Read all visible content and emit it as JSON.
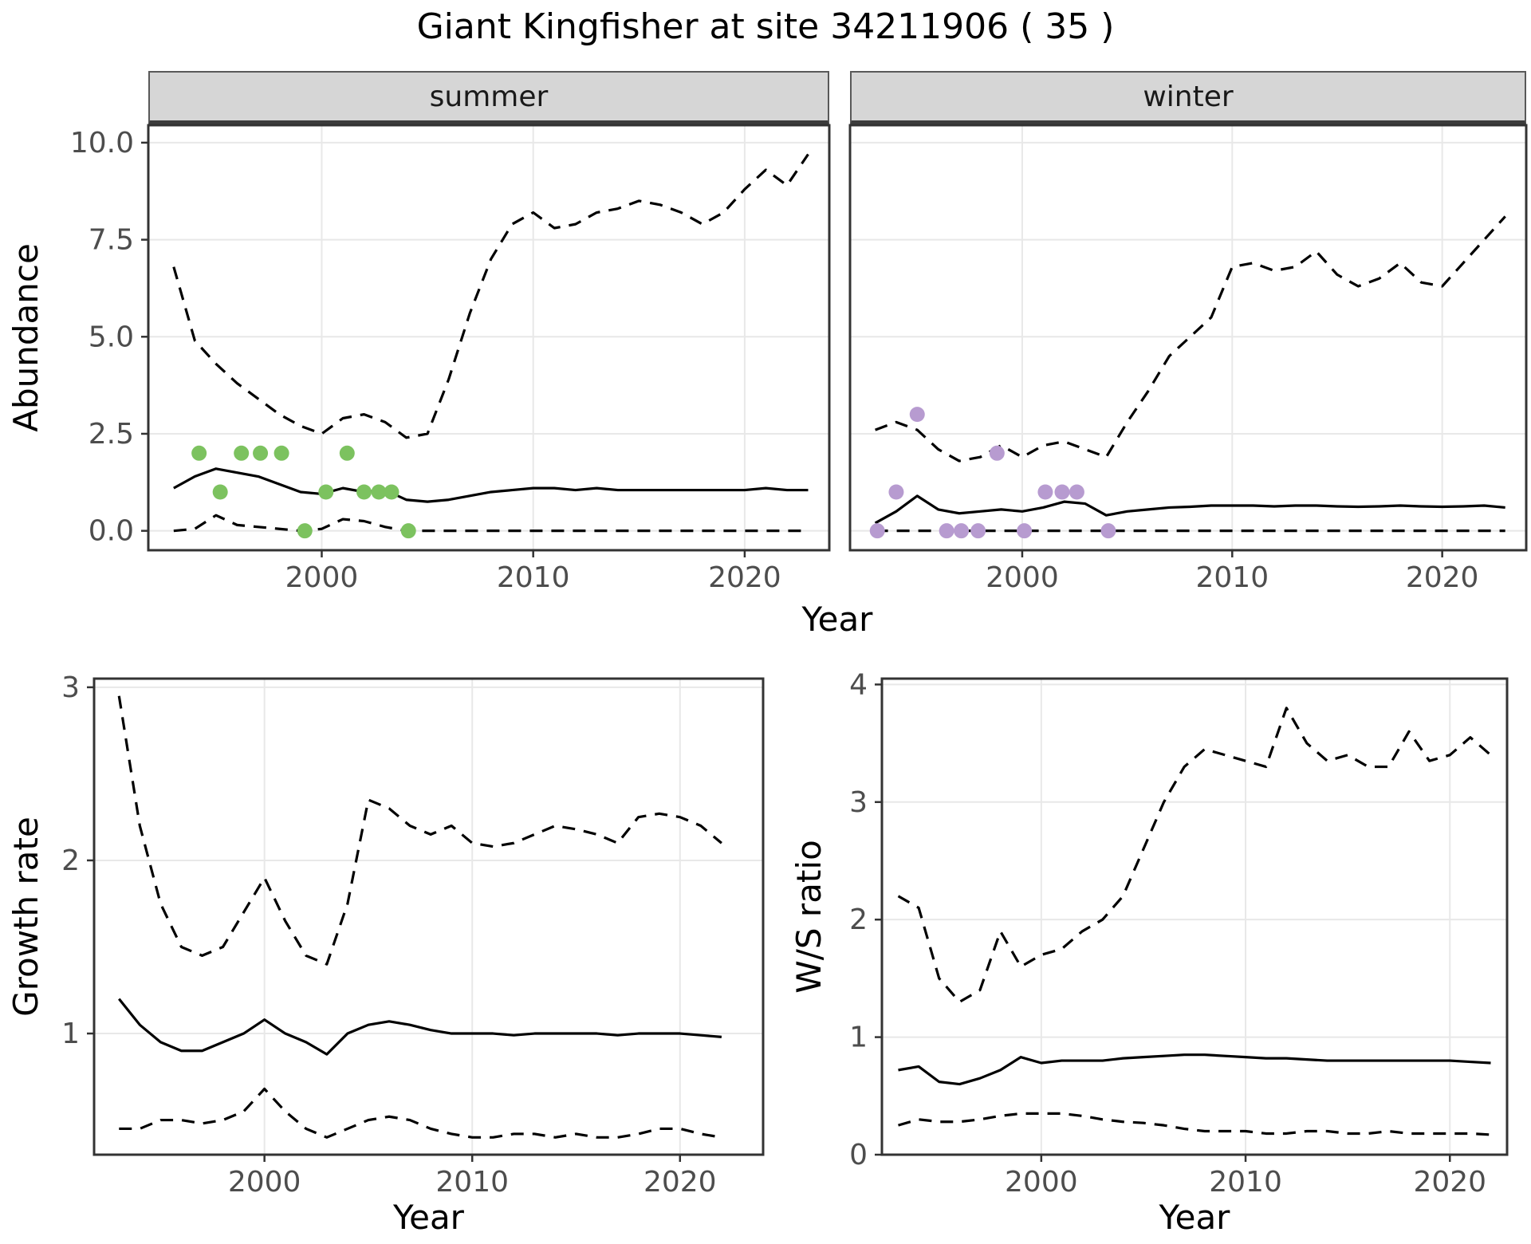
{
  "title": "Giant Kingfisher at site 34211906 ( 35 )",
  "axes": {
    "abundance_ylabel": "Abundance",
    "top_xlabel": "Year",
    "growth_ylabel": "Growth rate",
    "growth_xlabel": "Year",
    "ws_ylabel": "W/S ratio",
    "ws_xlabel": "Year"
  },
  "style": {
    "line_color": "#000000",
    "summer_point_color": "#7cc25f",
    "winter_point_color": "#b79bd0",
    "grid_color": "#e8e8e8",
    "panel_border_color": "#333333",
    "strip_bg": "#d6d6d6",
    "tick_label_color": "#4d4d4d"
  },
  "chart_data": [
    {
      "id": "abundance-summer",
      "type": "line",
      "facet": "summer",
      "show_y_labels": true,
      "xlim": [
        1991.8,
        2024
      ],
      "ylim": [
        -0.5,
        10.45
      ],
      "xticks": [
        2000,
        2010,
        2020
      ],
      "xtick_labels": [
        "2000",
        "2010",
        "2020"
      ],
      "yticks": [
        0,
        2.5,
        5,
        7.5,
        10
      ],
      "ytick_labels": [
        "0.0",
        "2.5",
        "5.0",
        "7.5",
        "10.0"
      ],
      "x": [
        1993,
        1994,
        1995,
        1996,
        1997,
        1998,
        1999,
        2000,
        2001,
        2002,
        2003,
        2004,
        2005,
        2006,
        2007,
        2008,
        2009,
        2010,
        2011,
        2012,
        2013,
        2014,
        2015,
        2016,
        2017,
        2018,
        2019,
        2020,
        2021,
        2022,
        2023
      ],
      "series": [
        {
          "name": "upper_ci",
          "style": "dashed",
          "values": [
            6.8,
            4.9,
            4.3,
            3.8,
            3.4,
            3.0,
            2.7,
            2.5,
            2.9,
            3.0,
            2.8,
            2.4,
            2.5,
            3.9,
            5.6,
            7.0,
            7.9,
            8.2,
            7.8,
            7.9,
            8.2,
            8.3,
            8.5,
            8.4,
            8.2,
            7.9,
            8.2,
            8.8,
            9.3,
            8.9,
            9.7
          ]
        },
        {
          "name": "median",
          "style": "solid",
          "values": [
            1.1,
            1.4,
            1.6,
            1.5,
            1.4,
            1.2,
            1.0,
            0.95,
            1.1,
            1.0,
            1.05,
            0.8,
            0.75,
            0.8,
            0.9,
            1.0,
            1.05,
            1.1,
            1.1,
            1.05,
            1.1,
            1.05,
            1.05,
            1.05,
            1.05,
            1.05,
            1.05,
            1.05,
            1.1,
            1.05,
            1.05
          ]
        },
        {
          "name": "lower_ci",
          "style": "dashed",
          "values": [
            0,
            0.05,
            0.4,
            0.15,
            0.1,
            0.05,
            0,
            0.05,
            0.3,
            0.25,
            0.1,
            0,
            0,
            0,
            0,
            0,
            0,
            0,
            0,
            0,
            0,
            0,
            0,
            0,
            0,
            0,
            0,
            0,
            0,
            0,
            0
          ]
        }
      ],
      "points": {
        "name": "observed-counts-summer",
        "color_key": "summer_point_color",
        "x": [
          1994.2,
          1995.2,
          1996.2,
          1997.1,
          1998.1,
          1999.2,
          2000.2,
          2001.2,
          2002.0,
          2002.7,
          2003.3,
          2004.1
        ],
        "y": [
          2,
          1,
          2,
          2,
          2,
          0,
          1,
          2,
          1,
          1,
          1,
          0
        ]
      }
    },
    {
      "id": "abundance-winter",
      "type": "line",
      "facet": "winter",
      "show_y_labels": false,
      "xlim": [
        1991.8,
        2024
      ],
      "ylim": [
        -0.5,
        10.45
      ],
      "xticks": [
        2000,
        2010,
        2020
      ],
      "xtick_labels": [
        "2000",
        "2010",
        "2020"
      ],
      "yticks": [
        0,
        2.5,
        5,
        7.5,
        10
      ],
      "ytick_labels": [
        "0.0",
        "2.5",
        "5.0",
        "7.5",
        "10.0"
      ],
      "x": [
        1993,
        1994,
        1995,
        1996,
        1997,
        1998,
        1999,
        2000,
        2001,
        2002,
        2003,
        2004,
        2005,
        2006,
        2007,
        2008,
        2009,
        2010,
        2011,
        2012,
        2013,
        2014,
        2015,
        2016,
        2017,
        2018,
        2019,
        2020,
        2021,
        2022,
        2023
      ],
      "series": [
        {
          "name": "upper_ci",
          "style": "dashed",
          "values": [
            2.6,
            2.8,
            2.6,
            2.1,
            1.8,
            1.9,
            2.2,
            1.9,
            2.2,
            2.3,
            2.1,
            1.9,
            2.8,
            3.6,
            4.5,
            5.0,
            5.5,
            6.8,
            6.9,
            6.7,
            6.8,
            7.2,
            6.6,
            6.3,
            6.5,
            6.9,
            6.4,
            6.3,
            6.9,
            7.5,
            8.1
          ]
        },
        {
          "name": "median",
          "style": "solid",
          "values": [
            0.2,
            0.5,
            0.9,
            0.55,
            0.45,
            0.5,
            0.55,
            0.5,
            0.6,
            0.75,
            0.7,
            0.4,
            0.5,
            0.55,
            0.6,
            0.62,
            0.65,
            0.65,
            0.65,
            0.63,
            0.65,
            0.65,
            0.63,
            0.62,
            0.63,
            0.65,
            0.63,
            0.62,
            0.63,
            0.65,
            0.6
          ]
        },
        {
          "name": "lower_ci",
          "style": "dashed",
          "values": [
            0,
            0,
            0,
            0,
            0,
            0,
            0,
            0,
            0,
            0,
            0,
            0,
            0,
            0,
            0,
            0,
            0,
            0,
            0,
            0,
            0,
            0,
            0,
            0,
            0,
            0,
            0,
            0,
            0,
            0,
            0
          ]
        }
      ],
      "points": {
        "name": "observed-counts-winter",
        "color_key": "winter_point_color",
        "x": [
          1993.1,
          1994.0,
          1995.0,
          1996.4,
          1997.1,
          1997.9,
          1998.8,
          2000.1,
          2001.1,
          2001.9,
          2002.6,
          2004.1
        ],
        "y": [
          0,
          1,
          3,
          0,
          0,
          0,
          2,
          0,
          1,
          1,
          1,
          0
        ]
      }
    },
    {
      "id": "growth-rate",
      "type": "line",
      "show_y_labels": true,
      "xlim": [
        1991.8,
        2024
      ],
      "ylim": [
        0.3,
        3.05
      ],
      "xticks": [
        2000,
        2010,
        2020
      ],
      "xtick_labels": [
        "2000",
        "2010",
        "2020"
      ],
      "yticks": [
        1,
        2,
        3
      ],
      "ytick_labels": [
        "1",
        "2",
        "3"
      ],
      "x": [
        1993,
        1994,
        1995,
        1996,
        1997,
        1998,
        1999,
        2000,
        2001,
        2002,
        2003,
        2004,
        2005,
        2006,
        2007,
        2008,
        2009,
        2010,
        2011,
        2012,
        2013,
        2014,
        2015,
        2016,
        2017,
        2018,
        2019,
        2020,
        2021,
        2022
      ],
      "series": [
        {
          "name": "upper_ci",
          "style": "dashed",
          "values": [
            2.95,
            2.2,
            1.75,
            1.5,
            1.45,
            1.5,
            1.7,
            1.9,
            1.65,
            1.45,
            1.4,
            1.75,
            2.35,
            2.3,
            2.2,
            2.15,
            2.2,
            2.1,
            2.08,
            2.1,
            2.15,
            2.2,
            2.18,
            2.15,
            2.1,
            2.25,
            2.27,
            2.25,
            2.2,
            2.1
          ]
        },
        {
          "name": "median",
          "style": "solid",
          "values": [
            1.2,
            1.05,
            0.95,
            0.9,
            0.9,
            0.95,
            1.0,
            1.08,
            1.0,
            0.95,
            0.88,
            1.0,
            1.05,
            1.07,
            1.05,
            1.02,
            1.0,
            1.0,
            1.0,
            0.99,
            1.0,
            1.0,
            1.0,
            1.0,
            0.99,
            1.0,
            1.0,
            1.0,
            0.99,
            0.98
          ]
        },
        {
          "name": "lower_ci",
          "style": "dashed",
          "values": [
            0.45,
            0.45,
            0.5,
            0.5,
            0.48,
            0.5,
            0.55,
            0.68,
            0.55,
            0.45,
            0.4,
            0.45,
            0.5,
            0.52,
            0.5,
            0.45,
            0.42,
            0.4,
            0.4,
            0.42,
            0.42,
            0.4,
            0.42,
            0.4,
            0.4,
            0.42,
            0.45,
            0.45,
            0.42,
            0.4
          ]
        }
      ]
    },
    {
      "id": "ws-ratio",
      "type": "line",
      "show_y_labels": true,
      "xlim": [
        1992.2,
        2022.8
      ],
      "ylim": [
        0,
        4.05
      ],
      "xticks": [
        2000,
        2010,
        2020
      ],
      "xtick_labels": [
        "2000",
        "2010",
        "2020"
      ],
      "yticks": [
        0,
        1,
        2,
        3,
        4
      ],
      "ytick_labels": [
        "0",
        "1",
        "2",
        "3",
        "4"
      ],
      "x": [
        1993,
        1994,
        1995,
        1996,
        1997,
        1998,
        1999,
        2000,
        2001,
        2002,
        2003,
        2004,
        2005,
        2006,
        2007,
        2008,
        2009,
        2010,
        2011,
        2012,
        2013,
        2014,
        2015,
        2016,
        2017,
        2018,
        2019,
        2020,
        2021,
        2022
      ],
      "series": [
        {
          "name": "upper_ci",
          "style": "dashed",
          "values": [
            2.2,
            2.1,
            1.5,
            1.3,
            1.4,
            1.9,
            1.6,
            1.7,
            1.75,
            1.9,
            2.0,
            2.2,
            2.6,
            3.0,
            3.3,
            3.45,
            3.4,
            3.35,
            3.3,
            3.8,
            3.5,
            3.35,
            3.4,
            3.3,
            3.3,
            3.6,
            3.35,
            3.4,
            3.55,
            3.4
          ]
        },
        {
          "name": "median",
          "style": "solid",
          "values": [
            0.72,
            0.75,
            0.62,
            0.6,
            0.65,
            0.72,
            0.83,
            0.78,
            0.8,
            0.8,
            0.8,
            0.82,
            0.83,
            0.84,
            0.85,
            0.85,
            0.84,
            0.83,
            0.82,
            0.82,
            0.81,
            0.8,
            0.8,
            0.8,
            0.8,
            0.8,
            0.8,
            0.8,
            0.79,
            0.78
          ]
        },
        {
          "name": "lower_ci",
          "style": "dashed",
          "values": [
            0.25,
            0.3,
            0.28,
            0.28,
            0.3,
            0.33,
            0.35,
            0.35,
            0.35,
            0.33,
            0.3,
            0.28,
            0.27,
            0.25,
            0.22,
            0.2,
            0.2,
            0.2,
            0.18,
            0.18,
            0.2,
            0.2,
            0.18,
            0.18,
            0.2,
            0.18,
            0.18,
            0.18,
            0.18,
            0.17
          ]
        }
      ]
    }
  ]
}
